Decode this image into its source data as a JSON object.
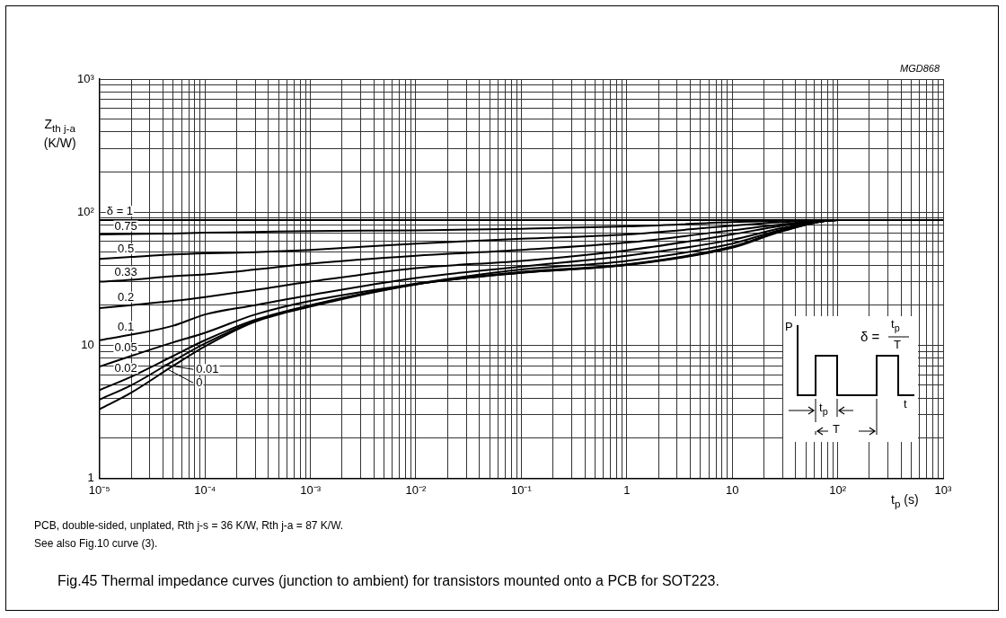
{
  "chart_data": {
    "type": "line",
    "title": "Fig.45  Thermal impedance curves (junction to ambient) for transistors mounted onto a PCB for SOT223.",
    "xlabel": "t$_{p}$ (s)",
    "ylabel": "Z$_{th j-a}$ (K/W)",
    "x": [
      1e-05,
      2e-05,
      5e-05,
      0.0001,
      0.0003,
      0.001,
      0.01,
      0.1,
      1,
      10,
      30,
      100,
      1000
    ],
    "series": [
      {
        "name": "δ = 1",
        "color": "#000000",
        "values": [
          87,
          87,
          87,
          87,
          87,
          87,
          87,
          87,
          87,
          87,
          87,
          87,
          87
        ]
      },
      {
        "name": "0.75",
        "color": "#000000",
        "values": [
          68,
          68.5,
          69,
          70,
          71,
          72,
          73,
          75,
          78,
          84,
          86,
          87,
          87
        ]
      },
      {
        "name": "0.5",
        "color": "#000000",
        "values": [
          44.5,
          46,
          48,
          49,
          50,
          52,
          58,
          63,
          68,
          79,
          84,
          87,
          87
        ]
      },
      {
        "name": "0.33",
        "color": "#000000",
        "values": [
          30,
          31,
          33,
          34,
          37,
          41,
          47,
          52,
          59,
          73,
          81,
          87,
          87
        ]
      },
      {
        "name": "0.2",
        "color": "#000000",
        "values": [
          19,
          20,
          21.5,
          23,
          26,
          30,
          38,
          43,
          51.6,
          68,
          79,
          87,
          87
        ]
      },
      {
        "name": "0.1",
        "color": "#000000",
        "values": [
          10.9,
          12,
          14,
          17,
          20,
          23.8,
          32,
          39,
          47,
          62,
          76,
          87,
          87
        ]
      },
      {
        "name": "0.05",
        "color": "#000000",
        "values": [
          6.9,
          8.3,
          10.5,
          12.4,
          17,
          21.5,
          29,
          37,
          43,
          58,
          74,
          87,
          87
        ]
      },
      {
        "name": "0.02",
        "color": "#000000",
        "values": [
          4.6,
          5.8,
          8.3,
          10.9,
          15.5,
          20,
          28.8,
          35.5,
          40.5,
          55,
          73,
          87,
          87
        ]
      },
      {
        "name": "0.01",
        "color": "#000000",
        "values": [
          3.9,
          5,
          7.6,
          10.3,
          15.2,
          19.8,
          28.7,
          35,
          40.2,
          54.5,
          72.5,
          87,
          87
        ]
      },
      {
        "name": "0",
        "color": "#000000",
        "values": [
          3.3,
          4.4,
          7,
          9.8,
          15,
          19.5,
          28.6,
          35,
          40,
          54,
          72,
          87,
          87
        ]
      }
    ],
    "log": "xy",
    "xlim": [
      1e-05,
      1000
    ],
    "ylim": [
      1,
      1000
    ],
    "xticks": [
      {
        "value": 1e-05,
        "label": "10⁻⁵"
      },
      {
        "value": 2e-05,
        "label": null
      },
      {
        "value": 3e-05,
        "label": null
      },
      {
        "value": 4e-05,
        "label": null
      },
      {
        "value": 5e-05,
        "label": null
      },
      {
        "value": 6e-05,
        "label": null
      },
      {
        "value": 7e-05,
        "label": null
      },
      {
        "value": 8e-05,
        "label": null
      },
      {
        "value": 9e-05,
        "label": null
      },
      {
        "value": 0.0001,
        "label": "10⁻⁴"
      },
      {
        "value": 0.0002,
        "label": null
      },
      {
        "value": 0.0003,
        "label": null
      },
      {
        "value": 0.0004,
        "label": null
      },
      {
        "value": 0.0005,
        "label": null
      },
      {
        "value": 0.0006,
        "label": null
      },
      {
        "value": 0.0007,
        "label": null
      },
      {
        "value": 0.0008,
        "label": null
      },
      {
        "value": 0.0009,
        "label": null
      },
      {
        "value": 0.001,
        "label": "10⁻³"
      },
      {
        "value": 0.002,
        "label": null
      },
      {
        "value": 0.003,
        "label": null
      },
      {
        "value": 0.004,
        "label": null
      },
      {
        "value": 0.005,
        "label": null
      },
      {
        "value": 0.006,
        "label": null
      },
      {
        "value": 0.007,
        "label": null
      },
      {
        "value": 0.008,
        "label": null
      },
      {
        "value": 0.009,
        "label": null
      },
      {
        "value": 0.01,
        "label": "10⁻²"
      },
      {
        "value": 0.02,
        "label": null
      },
      {
        "value": 0.03,
        "label": null
      },
      {
        "value": 0.04,
        "label": null
      },
      {
        "value": 0.05,
        "label": null
      },
      {
        "value": 0.06,
        "label": null
      },
      {
        "value": 0.07,
        "label": null
      },
      {
        "value": 0.08,
        "label": null
      },
      {
        "value": 0.09,
        "label": null
      },
      {
        "value": 0.1,
        "label": "10⁻¹"
      },
      {
        "value": 0.2,
        "label": null
      },
      {
        "value": 0.3,
        "label": null
      },
      {
        "value": 0.4,
        "label": null
      },
      {
        "value": 0.5,
        "label": null
      },
      {
        "value": 0.6,
        "label": null
      },
      {
        "value": 0.7,
        "label": null
      },
      {
        "value": 0.8,
        "label": null
      },
      {
        "value": 0.9,
        "label": null
      },
      1,
      {
        "value": 2,
        "label": null
      },
      {
        "value": 3,
        "label": null
      },
      {
        "value": 4,
        "label": null
      },
      {
        "value": 5,
        "label": null
      },
      {
        "value": 6,
        "label": null
      },
      {
        "value": 7,
        "label": null
      },
      {
        "value": 8,
        "label": null
      },
      {
        "value": 9,
        "label": null
      },
      10,
      {
        "value": 20,
        "label": null
      },
      {
        "value": 30,
        "label": null
      },
      {
        "value": 40,
        "label": null
      },
      {
        "value": 50,
        "label": null
      },
      {
        "value": 60,
        "label": null
      },
      {
        "value": 70,
        "label": null
      },
      {
        "value": 80,
        "label": null
      },
      {
        "value": 90,
        "label": null
      },
      {
        "value": 100,
        "label": "10²"
      },
      {
        "value": 200,
        "label": null
      },
      {
        "value": 300,
        "label": null
      },
      {
        "value": 400,
        "label": null
      },
      {
        "value": 500,
        "label": null
      },
      {
        "value": 600,
        "label": null
      },
      {
        "value": 700,
        "label": null
      },
      {
        "value": 800,
        "label": null
      },
      {
        "value": 900,
        "label": null
      },
      {
        "value": 1000,
        "label": "10³"
      }
    ],
    "yticks": [
      1,
      {
        "value": 2,
        "label": null
      },
      {
        "value": 3,
        "label": null
      },
      {
        "value": 4,
        "label": null
      },
      {
        "value": 5,
        "label": null
      },
      {
        "value": 6,
        "label": null
      },
      {
        "value": 7,
        "label": null
      },
      {
        "value": 8,
        "label": null
      },
      {
        "value": 9,
        "label": null
      },
      10,
      {
        "value": 20,
        "label": null
      },
      {
        "value": 30,
        "label": null
      },
      {
        "value": 40,
        "label": null
      },
      {
        "value": 50,
        "label": null
      },
      {
        "value": 60,
        "label": null
      },
      {
        "value": 70,
        "label": null
      },
      {
        "value": 80,
        "label": null
      },
      {
        "value": 90,
        "label": null
      },
      {
        "value": 100,
        "label": "10²"
      },
      {
        "value": 200,
        "label": null
      },
      {
        "value": 300,
        "label": null
      },
      {
        "value": 400,
        "label": null
      },
      {
        "value": 500,
        "label": null
      },
      {
        "value": 600,
        "label": null
      },
      {
        "value": 700,
        "label": null
      },
      {
        "value": 800,
        "label": null
      },
      {
        "value": 900,
        "label": null
      },
      {
        "value": 1000,
        "label": "10³"
      }
    ],
    "grid": true,
    "legend": false,
    "marker": "none",
    "line_style": "solid",
    "annotations": [
      "MGD868",
      "PCB, double-sided, unplated, Rth j-s = 36 K/W, Rth j-a = 87 K/W.",
      "See also Fig.10 curve (3).",
      "P",
      "t",
      "t$_{p}$",
      "T",
      "δ =",
      "t$_{p}$",
      "T"
    ]
  }
}
